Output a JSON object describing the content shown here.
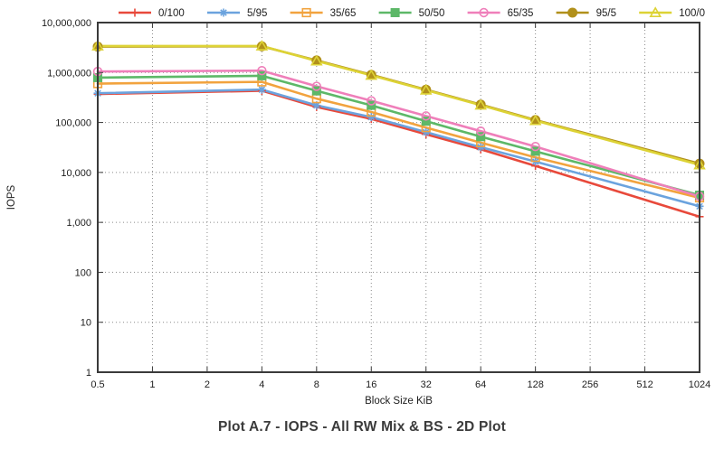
{
  "figure": {
    "title": "Plot A.7 - IOPS - All RW Mix & BS - 2D Plot"
  },
  "chart_data": {
    "type": "line",
    "title": "Plot A.7 - IOPS - All RW Mix & BS - 2D Plot",
    "xlabel": "Block Size KiB",
    "ylabel": "IOPS",
    "x_scale": "log2",
    "y_scale": "log10",
    "xlim": [
      0.5,
      1024
    ],
    "ylim": [
      1,
      10000000
    ],
    "grid": true,
    "legend_position": "top",
    "x_tick_labels": [
      "0.5",
      "1",
      "2",
      "4",
      "8",
      "16",
      "32",
      "64",
      "128",
      "256",
      "512",
      "1024"
    ],
    "y_tick_labels": [
      "1",
      "10",
      "100",
      "1,000",
      "10,000",
      "100,000",
      "1,000,000",
      "10,000,000"
    ],
    "x": [
      0.5,
      4,
      8,
      16,
      32,
      64,
      128,
      1024
    ],
    "series": [
      {
        "name": "0/100",
        "color": "#e8493b",
        "marker": "plus",
        "values": [
          372000,
          432000,
          205000,
          118000,
          58000,
          29000,
          13500,
          1300
        ]
      },
      {
        "name": "5/95",
        "color": "#6ba3de",
        "marker": "asterisk",
        "values": [
          385000,
          455000,
          220000,
          128000,
          64000,
          32000,
          16500,
          2100
        ]
      },
      {
        "name": "35/65",
        "color": "#f2a33e",
        "marker": "open-square",
        "values": [
          600000,
          650000,
          300000,
          162000,
          79000,
          39500,
          20000,
          3100
        ]
      },
      {
        "name": "50/50",
        "color": "#5db868",
        "marker": "filled-square",
        "values": [
          790000,
          860000,
          430000,
          220000,
          106000,
          52000,
          26500,
          3500
        ]
      },
      {
        "name": "65/35",
        "color": "#ef7fba",
        "marker": "open-circle",
        "values": [
          1050000,
          1090000,
          530000,
          272000,
          135000,
          67000,
          33000,
          3300
        ]
      },
      {
        "name": "95/5",
        "color": "#b1901b",
        "marker": "filled-circle",
        "values": [
          3300000,
          3350000,
          1750000,
          900000,
          455000,
          228000,
          112000,
          15000
        ]
      },
      {
        "name": "100/0",
        "color": "#ddd335",
        "marker": "open-triangle",
        "values": [
          3400000,
          3400000,
          1700000,
          880000,
          445000,
          222000,
          109000,
          14200
        ]
      }
    ],
    "colors": {
      "frame": "#3a3a3a",
      "grid": "#8a8a8a",
      "text": "#1d1d1d",
      "title": "#3b3b3b"
    }
  }
}
